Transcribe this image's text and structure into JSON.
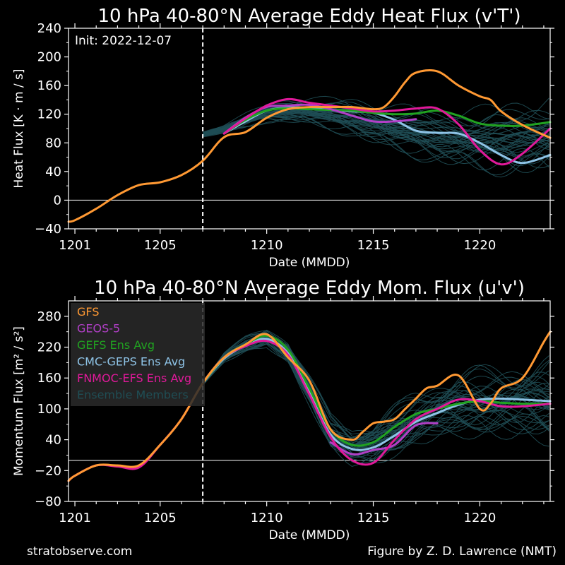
{
  "footer": {
    "left": "stratobserve.com",
    "right": "Figure by Z. D. Lawrence (NMT)"
  },
  "colors": {
    "background": "#000000",
    "GFS": "#ff9933",
    "GEOS-5": "#b03fc6",
    "GEFS Ens Avg": "#21a321",
    "CMC-GEPS Ens Avg": "#8ec3e6",
    "FNMOC-EFS Ens Avg": "#e0199a",
    "Ensemble Members": "#1f4e55"
  },
  "chart_data": [
    {
      "type": "line",
      "title": "10 hPa  40-80°N  Average Eddy Heat Flux (v'T')",
      "xlabel": "Date (MMDD)",
      "ylabel": "Heat Flux  [K · m / s]",
      "x_unit": "day offset from 1201",
      "xlim": [
        -0.3,
        22.3
      ],
      "ylim": [
        -40,
        240
      ],
      "xticks": [
        0,
        4,
        9,
        14,
        19
      ],
      "xtick_labels": [
        "1201",
        "1205",
        "1210",
        "1215",
        "1220"
      ],
      "yticks": [
        -40,
        0,
        40,
        80,
        120,
        160,
        200,
        240
      ],
      "ytick_labels": [
        "−40",
        "0",
        "40",
        "80",
        "120",
        "160",
        "200",
        "240"
      ],
      "annotation": "Init: 2022-12-07",
      "init_x": 6,
      "zero_line": 0,
      "ensemble_count": 40,
      "ensemble_spread": 8,
      "series": [
        {
          "name": "Ensemble Members",
          "x": [
            6,
            7,
            8,
            9,
            10,
            11,
            12,
            13,
            14,
            15,
            16,
            17,
            18,
            19,
            20,
            21,
            22.3
          ],
          "values": [
            92,
            100,
            112,
            123,
            126,
            126,
            122,
            118,
            110,
            103,
            98,
            94,
            90,
            88,
            90,
            92,
            95
          ]
        },
        {
          "name": "GFS",
          "x": [
            -0.3,
            0,
            1,
            2,
            3,
            4,
            5,
            6,
            7,
            8,
            9,
            10,
            11,
            12,
            13,
            14,
            14.5,
            15,
            15.5,
            16,
            17,
            18,
            19,
            19.5,
            20,
            21,
            22.3
          ],
          "values": [
            -30,
            -28,
            -12,
            7,
            21,
            25,
            35,
            55,
            88,
            95,
            115,
            127,
            130,
            130,
            130,
            127,
            130,
            145,
            165,
            178,
            180,
            160,
            145,
            140,
            124,
            105,
            87
          ]
        },
        {
          "name": "GEOS-5",
          "x": [
            7,
            8,
            9,
            10,
            11,
            12,
            13,
            14,
            15,
            16
          ],
          "values": [
            93,
            115,
            130,
            132,
            133,
            127,
            118,
            110,
            110,
            113
          ]
        },
        {
          "name": "GEFS Ens Avg",
          "x": [
            7,
            8,
            9,
            10,
            11,
            12,
            13,
            14,
            15,
            16,
            17,
            18,
            19,
            20,
            21,
            22.3
          ],
          "values": [
            93,
            112,
            125,
            128,
            127,
            126,
            125,
            122,
            120,
            121,
            125,
            118,
            107,
            104,
            104,
            109
          ]
        },
        {
          "name": "CMC-GEPS Ens Avg",
          "x": [
            7,
            8,
            9,
            10,
            11,
            12,
            13,
            14,
            15,
            16,
            17,
            18,
            19,
            20,
            21,
            22.3
          ],
          "values": [
            93,
            110,
            125,
            129,
            129,
            126,
            124,
            122,
            112,
            97,
            94,
            93,
            80,
            63,
            52,
            63
          ]
        },
        {
          "name": "FNMOC-EFS Ens Avg",
          "x": [
            7,
            8,
            9,
            10,
            11,
            12,
            13,
            14,
            15,
            16,
            17,
            18,
            19,
            20,
            21,
            22.3
          ],
          "values": [
            93,
            114,
            132,
            141,
            136,
            132,
            128,
            124,
            125,
            128,
            128,
            106,
            70,
            50,
            65,
            100
          ]
        }
      ]
    },
    {
      "type": "line",
      "title": "10 hPa  40-80°N  Average Eddy Mom. Flux (u'v')",
      "xlabel": "Date (MMDD)",
      "ylabel": "Momentum Flux  [m² / s²]",
      "x_unit": "day offset from 1201",
      "xlim": [
        -0.3,
        22.3
      ],
      "ylim": [
        -80,
        310
      ],
      "xticks": [
        0,
        4,
        9,
        14,
        19
      ],
      "xtick_labels": [
        "1201",
        "1205",
        "1210",
        "1215",
        "1220"
      ],
      "yticks": [
        -80,
        -20,
        40,
        100,
        160,
        220,
        280
      ],
      "ytick_labels": [
        "−80",
        "−20",
        "40",
        "100",
        "160",
        "220",
        "280"
      ],
      "init_x": 6,
      "zero_line": 0,
      "legend_position": "upper-left",
      "legend": [
        "GFS",
        "GEOS-5",
        "GEFS Ens Avg",
        "CMC-GEPS Ens Avg",
        "FNMOC-EFS Ens Avg",
        "Ensemble Members"
      ],
      "ensemble_count": 40,
      "ensemble_spread": 14,
      "series": [
        {
          "name": "Ensemble Members",
          "x": [
            6,
            7,
            8,
            9,
            10,
            11,
            12,
            13,
            14,
            15,
            16,
            17,
            18,
            19,
            20,
            21,
            22.3
          ],
          "values": [
            150,
            200,
            225,
            238,
            210,
            135,
            55,
            25,
            30,
            55,
            80,
            95,
            105,
            110,
            112,
            112,
            112
          ]
        },
        {
          "name": "GFS",
          "x": [
            -0.3,
            0,
            1,
            2,
            3,
            4,
            5,
            6,
            7,
            8,
            9,
            10,
            11,
            12,
            13,
            13.5,
            14,
            14.5,
            15,
            15.5,
            16,
            16.5,
            17,
            18,
            19,
            19.5,
            20,
            21,
            22,
            22.3
          ],
          "values": [
            -40,
            -30,
            -10,
            -10,
            -10,
            30,
            80,
            150,
            200,
            225,
            245,
            200,
            155,
            60,
            40,
            55,
            72,
            75,
            80,
            100,
            120,
            140,
            145,
            165,
            100,
            110,
            140,
            160,
            230,
            250
          ]
        },
        {
          "name": "GEOS-5",
          "x": [
            12,
            13,
            14,
            15,
            16,
            17
          ],
          "values": [
            35,
            12,
            20,
            30,
            68,
            72
          ]
        },
        {
          "name": "GEFS Ens Avg",
          "x": [
            6,
            7,
            8,
            9,
            10,
            11,
            12,
            13,
            14,
            15,
            16,
            17,
            18,
            19,
            20,
            21,
            22.3
          ],
          "values": [
            150,
            200,
            225,
            242,
            215,
            140,
            60,
            30,
            35,
            65,
            90,
            100,
            110,
            115,
            112,
            110,
            110
          ]
        },
        {
          "name": "CMC-GEPS Ens Avg",
          "x": [
            6,
            7,
            8,
            9,
            10,
            11,
            12,
            13,
            14,
            15,
            16,
            17,
            18,
            19,
            20,
            21,
            22.3
          ],
          "values": [
            150,
            198,
            223,
            236,
            208,
            132,
            50,
            22,
            25,
            48,
            75,
            92,
            108,
            118,
            120,
            118,
            115
          ]
        },
        {
          "name": "FNMOC-EFS Ens Avg",
          "x": [
            -0.3,
            0,
            1,
            2,
            3,
            4,
            5,
            6,
            7,
            8,
            9,
            10,
            11,
            12,
            13,
            14,
            15,
            16,
            17,
            18,
            19,
            20,
            21,
            22.3
          ],
          "values": [
            -40,
            -30,
            -10,
            -12,
            -14,
            30,
            80,
            150,
            200,
            222,
            232,
            205,
            128,
            45,
            0,
            -5,
            40,
            80,
            100,
            118,
            115,
            105,
            105,
            110
          ]
        }
      ]
    }
  ]
}
